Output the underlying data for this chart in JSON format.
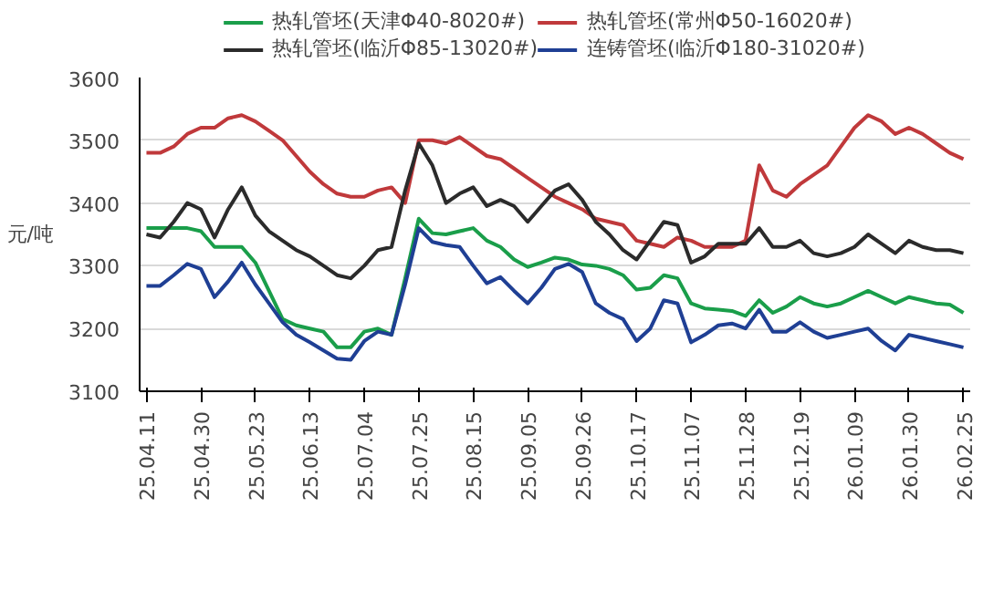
{
  "chart_data": {
    "type": "line",
    "ylabel": "元/吨",
    "categories": [
      "25.04.11",
      null,
      null,
      null,
      "25.04.30",
      null,
      null,
      null,
      "25.05.23",
      null,
      null,
      null,
      "25.06.13",
      null,
      null,
      null,
      "25.07.04",
      null,
      null,
      null,
      "25.07.25",
      null,
      null,
      null,
      "25.08.15",
      null,
      null,
      null,
      "25.09.05",
      null,
      null,
      null,
      "25.09.26",
      null,
      null,
      null,
      "25.10.17",
      null,
      null,
      null,
      "25.11.07",
      null,
      null,
      null,
      "25.11.28",
      null,
      null,
      null,
      "25.12.19",
      null,
      null,
      null,
      "26.01.09",
      null,
      null,
      null,
      "26.01.30",
      null,
      null,
      null,
      "26.02.25"
    ],
    "series": [
      {
        "name": "热轧管坯(天津Φ40-8020#)",
        "color": "#1a9e4a",
        "values": [
          3360,
          3360,
          3360,
          3360,
          3355,
          3330,
          3330,
          3330,
          3305,
          3260,
          3215,
          3205,
          3200,
          3195,
          3170,
          3170,
          3195,
          3200,
          3190,
          3280,
          3375,
          3352,
          3350,
          3355,
          3360,
          3340,
          3330,
          3310,
          3298,
          3305,
          3313,
          3310,
          3302,
          3300,
          3295,
          3285,
          3262,
          3265,
          3285,
          3280,
          3240,
          3232,
          3230,
          3228,
          3220,
          3245,
          3225,
          3235,
          3250,
          3240,
          3235,
          3240,
          3250,
          3260,
          3250,
          3240,
          3250,
          3245,
          3240,
          3238,
          3225
        ]
      },
      {
        "name": "热轧管坯(常州Φ50-16020#)",
        "color": "#c0393b",
        "values": [
          3480,
          3480,
          3490,
          3510,
          3520,
          3520,
          3535,
          3540,
          3530,
          3515,
          3500,
          3475,
          3450,
          3430,
          3415,
          3410,
          3410,
          3420,
          3425,
          3400,
          3500,
          3500,
          3495,
          3505,
          3490,
          3475,
          3470,
          3455,
          3440,
          3425,
          3410,
          3400,
          3390,
          3375,
          3370,
          3365,
          3340,
          3335,
          3330,
          3345,
          3340,
          3330,
          3330,
          3330,
          3340,
          3460,
          3420,
          3410,
          3430,
          3445,
          3460,
          3490,
          3520,
          3540,
          3530,
          3510,
          3520,
          3510,
          3495,
          3480,
          3470
        ]
      },
      {
        "name": "热轧管坯(临沂Φ85-13020#)",
        "color": "#2b2b2b",
        "values": [
          3350,
          3345,
          3370,
          3400,
          3390,
          3345,
          3390,
          3425,
          3380,
          3355,
          3340,
          3325,
          3315,
          3300,
          3285,
          3280,
          3300,
          3325,
          3330,
          3420,
          3495,
          3460,
          3400,
          3415,
          3425,
          3395,
          3405,
          3395,
          3370,
          3395,
          3420,
          3430,
          3405,
          3370,
          3350,
          3325,
          3310,
          3340,
          3370,
          3365,
          3305,
          3315,
          3335,
          3335,
          3335,
          3360,
          3330,
          3330,
          3340,
          3320,
          3315,
          3320,
          3330,
          3350,
          3335,
          3320,
          3340,
          3330,
          3325,
          3325,
          3320
        ]
      },
      {
        "name": "连铸管坯(临沂Φ180-31020#)",
        "color": "#1f3f94",
        "values": [
          3268,
          3268,
          3285,
          3303,
          3295,
          3250,
          3275,
          3305,
          3270,
          3240,
          3210,
          3190,
          3178,
          3165,
          3152,
          3150,
          3180,
          3195,
          3190,
          3270,
          3360,
          3338,
          3333,
          3330,
          3300,
          3272,
          3282,
          3260,
          3240,
          3265,
          3295,
          3303,
          3290,
          3240,
          3225,
          3215,
          3180,
          3200,
          3245,
          3240,
          3178,
          3190,
          3205,
          3208,
          3200,
          3230,
          3195,
          3195,
          3210,
          3195,
          3185,
          3190,
          3195,
          3200,
          3180,
          3165,
          3190,
          3185,
          3180,
          3175,
          3170
        ]
      }
    ],
    "ylim": [
      3100,
      3600
    ],
    "yticks": [
      3100,
      3200,
      3300,
      3400,
      3500,
      3600
    ],
    "grid": "y",
    "legend": "top",
    "line_style": "solid"
  }
}
